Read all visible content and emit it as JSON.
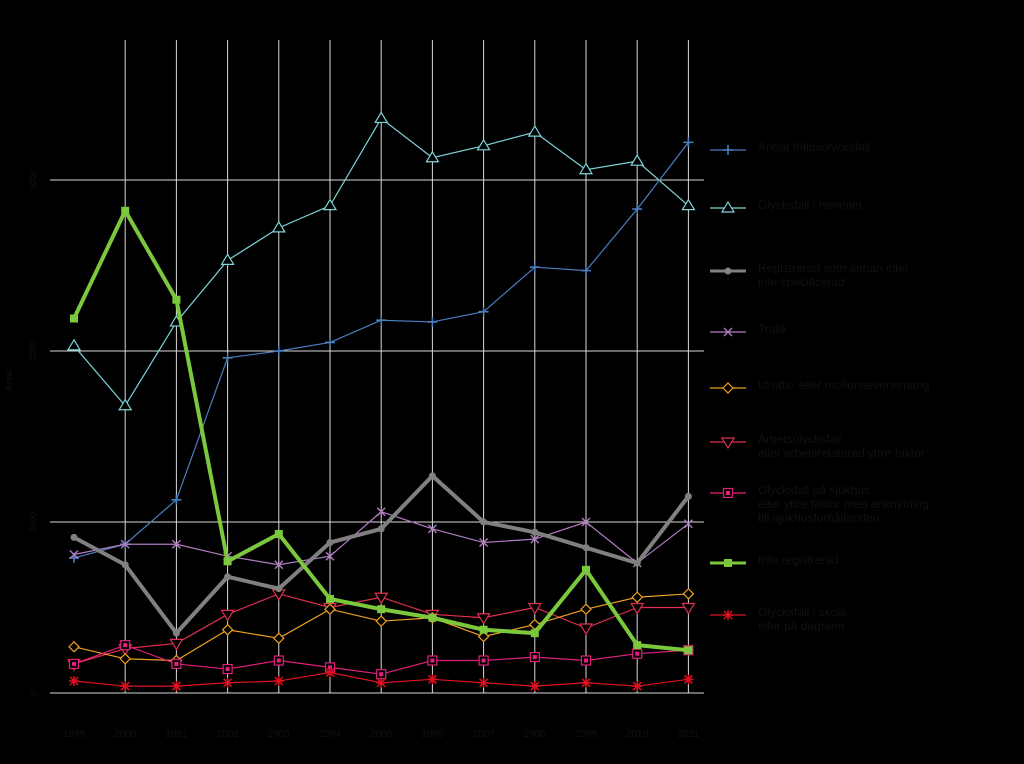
{
  "chart_data": {
    "type": "line",
    "title": "",
    "xlabel": "",
    "ylabel": "Antal",
    "x": [
      1999,
      2000,
      2001,
      2002,
      2003,
      2004,
      2005,
      2006,
      2007,
      2008,
      2009,
      2010,
      2011
    ],
    "x_tick_labels": [
      "1999",
      "2000",
      "2001",
      "2002",
      "2003",
      "2004",
      "2005",
      "2006",
      "2007",
      "2008",
      "2009",
      "2010",
      "2011"
    ],
    "ylim": [
      0,
      3000
    ],
    "y_ticks": [
      0,
      1000,
      2000,
      3000
    ],
    "y_tick_labels": [
      "0",
      "1000",
      "2000",
      "3000"
    ],
    "grid": true,
    "legend_position": "right",
    "background": "#000000",
    "series": [
      {
        "name": "Annat fritidsolycksfall",
        "color": "#4a7fc0",
        "marker": "plus",
        "width": 1.2,
        "values": [
          790,
          870,
          1130,
          1960,
          2000,
          2050,
          2180,
          2170,
          2230,
          2490,
          2470,
          2830,
          3220
        ]
      },
      {
        "name": "Olycksfall i hemmet",
        "color": "#7fd4d8",
        "marker": "triangle-up",
        "width": 1.2,
        "values": [
          2030,
          1680,
          2170,
          2530,
          2720,
          2850,
          3360,
          3130,
          3200,
          3280,
          3060,
          3110,
          2850
        ]
      },
      {
        "name": "Registrerad som annan eller\ninte specificerad",
        "color": "#808080",
        "marker": "circle",
        "width": 4,
        "values": [
          910,
          750,
          350,
          680,
          610,
          880,
          960,
          1270,
          1000,
          940,
          850,
          760,
          1150
        ]
      },
      {
        "name": "Trafik",
        "color": "#b07cc0",
        "marker": "x",
        "width": 1.2,
        "values": [
          810,
          870,
          870,
          800,
          750,
          800,
          1060,
          960,
          880,
          900,
          1000,
          760,
          990
        ]
      },
      {
        "name": "Idrotts- eller motionsevenemang",
        "color": "#f0a020",
        "marker": "diamond",
        "width": 1.2,
        "values": [
          270,
          200,
          190,
          370,
          320,
          490,
          420,
          440,
          330,
          400,
          490,
          560,
          580
        ]
      },
      {
        "name": "Arbetsolycksfall\neller arbetsrelaterad yttre faktor",
        "color": "#e03050",
        "marker": "triangle-down",
        "width": 1.2,
        "values": [
          170,
          260,
          290,
          460,
          580,
          500,
          560,
          460,
          440,
          500,
          380,
          500,
          500
        ]
      },
      {
        "name": "Olycksfall på sjukhus\neller yttre faktor med anknytning\ntill sjukhusförhållanden",
        "color": "#e0207a",
        "marker": "square-box",
        "width": 1.2,
        "values": [
          170,
          280,
          170,
          140,
          190,
          150,
          110,
          190,
          190,
          210,
          190,
          230,
          250
        ]
      },
      {
        "name": "Inte registrerad",
        "color": "#7cc83c",
        "marker": "square",
        "width": 4,
        "values": [
          2190,
          2820,
          2300,
          770,
          930,
          550,
          490,
          440,
          370,
          350,
          720,
          280,
          250
        ]
      },
      {
        "name": "Olycksfall i skola\neller på daghem",
        "color": "#e01020",
        "marker": "star",
        "width": 1.2,
        "values": [
          70,
          40,
          40,
          60,
          70,
          120,
          60,
          80,
          60,
          40,
          60,
          40,
          80
        ]
      }
    ]
  }
}
